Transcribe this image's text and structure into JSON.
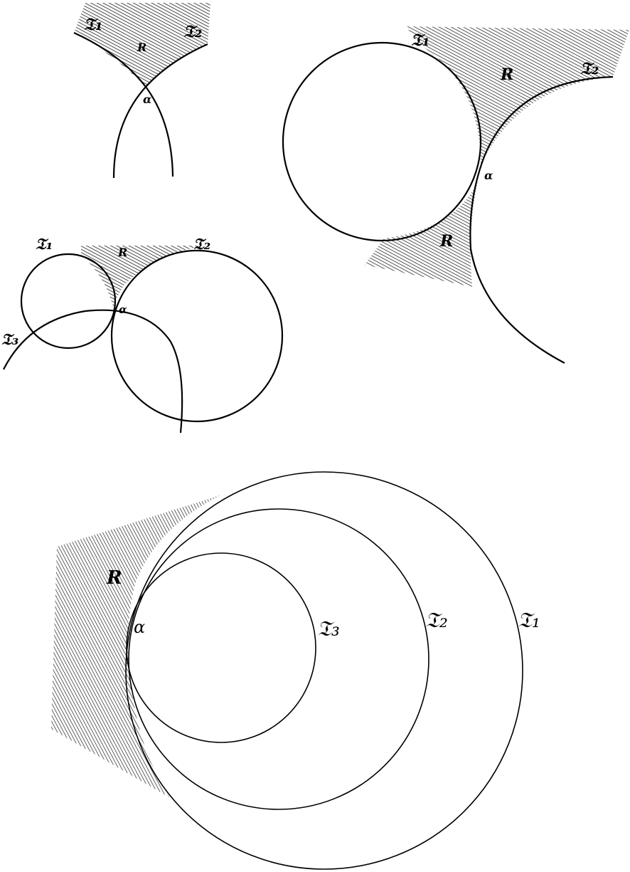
{
  "figures": {
    "fig1": {
      "labels": {
        "t1": "𝔗₁",
        "t2": "𝔗₂",
        "region": "R",
        "point": "α"
      }
    },
    "fig2": {
      "labels": {
        "t1": "𝔗₁",
        "t2": "𝔗₂",
        "region_top": "R",
        "region_bottom": "R",
        "point": "α"
      }
    },
    "fig3": {
      "labels": {
        "t1": "𝔗₁",
        "t2": "𝔗₂",
        "t3": "𝔗₃",
        "region": "R",
        "point": "α"
      }
    },
    "fig4": {
      "labels": {
        "t1": "𝔗₁",
        "t2": "𝔗₂",
        "t3": "𝔗₃",
        "region": "R",
        "point": "α"
      }
    }
  },
  "colors": {
    "ink": "#000000",
    "paper": "#ffffff"
  }
}
